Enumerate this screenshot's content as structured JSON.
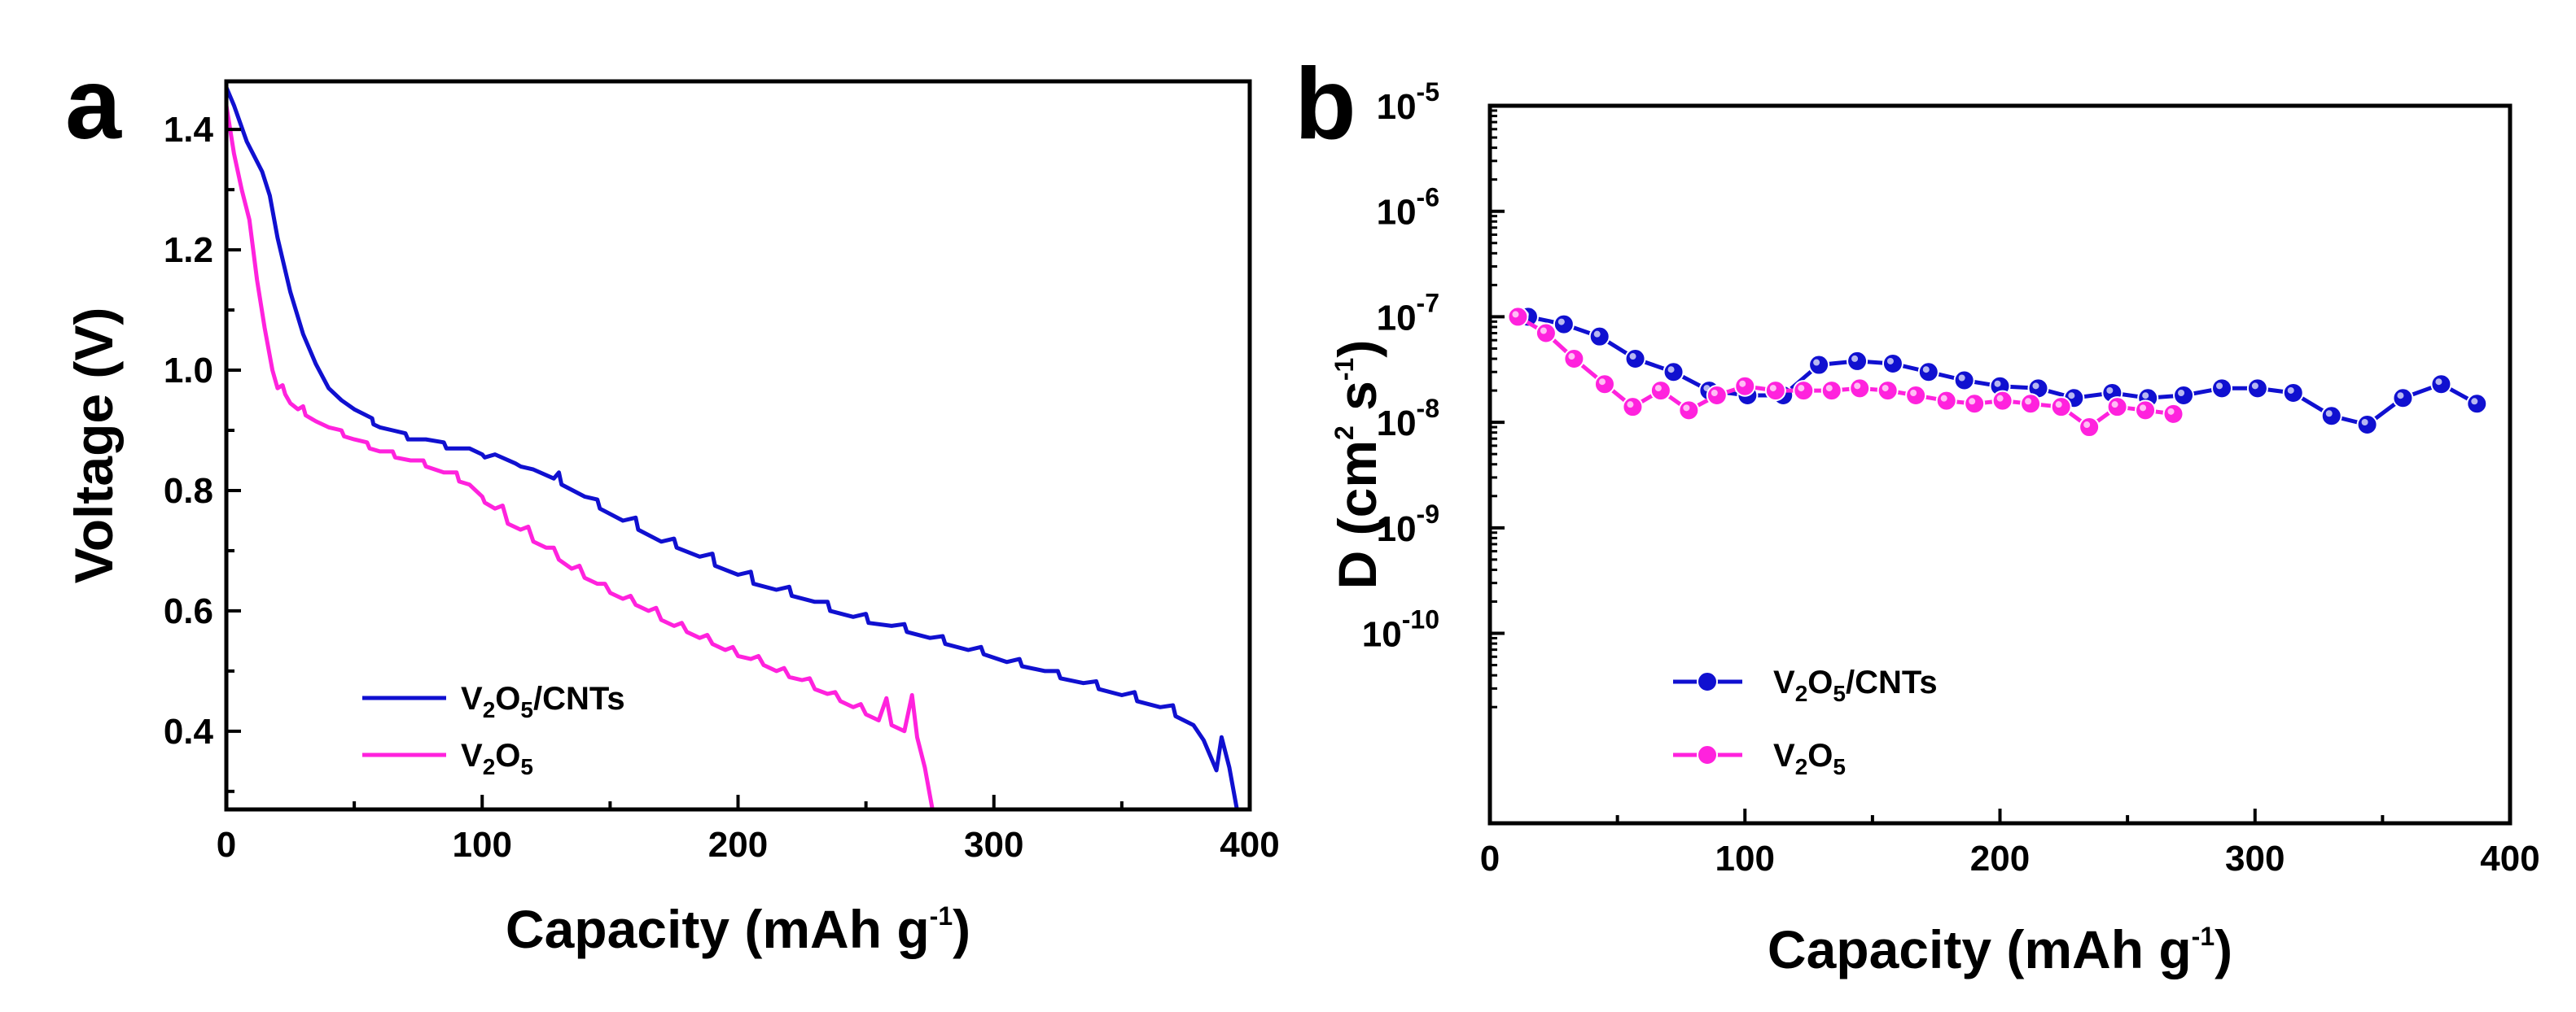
{
  "chart_data": [
    {
      "panel": "a",
      "type": "line",
      "xlabel": "Capacity (mAh g",
      "xlabel_sup": "-1",
      "xlabel_end": ")",
      "ylabel": "Voltage (V)",
      "xlim": [
        0,
        400
      ],
      "ylim": [
        0.27,
        1.48
      ],
      "xticks": [
        0,
        100,
        200,
        300,
        400
      ],
      "yticks": [
        0.4,
        0.6,
        0.8,
        1.0,
        1.2,
        1.4
      ],
      "xtick_labels": [
        "0",
        "100",
        "200",
        "300",
        "400"
      ],
      "ytick_labels": [
        "0.4",
        "0.6",
        "0.8",
        "1.0",
        "1.2",
        "1.4"
      ],
      "legend_position": "bottom-left",
      "series": [
        {
          "name": "V2O5/CNTs",
          "label_parts": [
            "V",
            "2",
            "O",
            "5",
            "/CNTs"
          ],
          "color": "#1010d0",
          "points": [
            [
              0,
              1.47
            ],
            [
              3,
              1.44
            ],
            [
              8,
              1.38
            ],
            [
              14,
              1.33
            ],
            [
              17,
              1.29
            ],
            [
              20,
              1.22
            ],
            [
              25,
              1.13
            ],
            [
              30,
              1.06
            ],
            [
              35,
              1.01
            ],
            [
              40,
              0.97
            ],
            [
              45,
              0.95
            ],
            [
              50,
              0.935
            ],
            [
              57,
              0.92
            ],
            [
              57.5,
              0.91
            ],
            [
              60,
              0.905
            ],
            [
              65,
              0.9
            ],
            [
              70,
              0.895
            ],
            [
              71,
              0.885
            ],
            [
              78,
              0.885
            ],
            [
              85,
              0.88
            ],
            [
              86,
              0.87
            ],
            [
              95,
              0.87
            ],
            [
              100,
              0.86
            ],
            [
              101,
              0.855
            ],
            [
              105,
              0.86
            ],
            [
              113,
              0.845
            ],
            [
              115,
              0.84
            ],
            [
              120,
              0.835
            ],
            [
              128,
              0.82
            ],
            [
              130,
              0.83
            ],
            [
              131,
              0.81
            ],
            [
              140,
              0.79
            ],
            [
              145,
              0.785
            ],
            [
              146,
              0.77
            ],
            [
              155,
              0.75
            ],
            [
              160,
              0.755
            ],
            [
              161,
              0.735
            ],
            [
              170,
              0.715
            ],
            [
              175,
              0.72
            ],
            [
              176,
              0.705
            ],
            [
              185,
              0.69
            ],
            [
              190,
              0.695
            ],
            [
              191,
              0.675
            ],
            [
              200,
              0.66
            ],
            [
              205,
              0.665
            ],
            [
              206,
              0.645
            ],
            [
              215,
              0.635
            ],
            [
              220,
              0.64
            ],
            [
              221,
              0.625
            ],
            [
              230,
              0.615
            ],
            [
              235,
              0.615
            ],
            [
              236,
              0.6
            ],
            [
              245,
              0.59
            ],
            [
              250,
              0.595
            ],
            [
              251,
              0.58
            ],
            [
              260,
              0.575
            ],
            [
              265,
              0.578
            ],
            [
              266,
              0.565
            ],
            [
              275,
              0.555
            ],
            [
              280,
              0.558
            ],
            [
              281,
              0.545
            ],
            [
              290,
              0.535
            ],
            [
              295,
              0.54
            ],
            [
              296,
              0.528
            ],
            [
              305,
              0.515
            ],
            [
              310,
              0.52
            ],
            [
              311,
              0.508
            ],
            [
              320,
              0.5
            ],
            [
              325,
              0.5
            ],
            [
              326,
              0.488
            ],
            [
              335,
              0.48
            ],
            [
              340,
              0.483
            ],
            [
              341,
              0.47
            ],
            [
              350,
              0.46
            ],
            [
              355,
              0.465
            ],
            [
              356,
              0.45
            ],
            [
              365,
              0.44
            ],
            [
              370,
              0.443
            ],
            [
              371,
              0.425
            ],
            [
              378,
              0.41
            ],
            [
              382,
              0.385
            ],
            [
              387,
              0.335
            ],
            [
              389,
              0.39
            ],
            [
              392,
              0.34
            ],
            [
              395,
              0.27
            ]
          ]
        },
        {
          "name": "V2O5",
          "label_parts": [
            "V",
            "2",
            "O",
            "5",
            ""
          ],
          "color": "#ff22dd",
          "points": [
            [
              0,
              1.44
            ],
            [
              3,
              1.36
            ],
            [
              6,
              1.3
            ],
            [
              9,
              1.25
            ],
            [
              12,
              1.15
            ],
            [
              15,
              1.07
            ],
            [
              18,
              1.0
            ],
            [
              20,
              0.97
            ],
            [
              22,
              0.975
            ],
            [
              23,
              0.96
            ],
            [
              25,
              0.945
            ],
            [
              28,
              0.935
            ],
            [
              30,
              0.94
            ],
            [
              31,
              0.925
            ],
            [
              35,
              0.915
            ],
            [
              40,
              0.905
            ],
            [
              45,
              0.9
            ],
            [
              46,
              0.89
            ],
            [
              50,
              0.885
            ],
            [
              55,
              0.88
            ],
            [
              56,
              0.87
            ],
            [
              60,
              0.865
            ],
            [
              65,
              0.865
            ],
            [
              66,
              0.855
            ],
            [
              72,
              0.85
            ],
            [
              77,
              0.85
            ],
            [
              78,
              0.84
            ],
            [
              85,
              0.83
            ],
            [
              90,
              0.83
            ],
            [
              91,
              0.815
            ],
            [
              95,
              0.81
            ],
            [
              100,
              0.79
            ],
            [
              101,
              0.78
            ],
            [
              105,
              0.77
            ],
            [
              108,
              0.775
            ],
            [
              110,
              0.745
            ],
            [
              115,
              0.735
            ],
            [
              118,
              0.74
            ],
            [
              120,
              0.715
            ],
            [
              125,
              0.705
            ],
            [
              128,
              0.705
            ],
            [
              130,
              0.685
            ],
            [
              135,
              0.67
            ],
            [
              138,
              0.675
            ],
            [
              140,
              0.655
            ],
            [
              145,
              0.645
            ],
            [
              148,
              0.645
            ],
            [
              150,
              0.63
            ],
            [
              155,
              0.62
            ],
            [
              158,
              0.625
            ],
            [
              160,
              0.61
            ],
            [
              165,
              0.6
            ],
            [
              168,
              0.605
            ],
            [
              170,
              0.585
            ],
            [
              175,
              0.575
            ],
            [
              178,
              0.58
            ],
            [
              180,
              0.565
            ],
            [
              185,
              0.555
            ],
            [
              188,
              0.56
            ],
            [
              190,
              0.545
            ],
            [
              195,
              0.535
            ],
            [
              198,
              0.54
            ],
            [
              200,
              0.525
            ],
            [
              205,
              0.52
            ],
            [
              208,
              0.525
            ],
            [
              210,
              0.51
            ],
            [
              215,
              0.5
            ],
            [
              218,
              0.505
            ],
            [
              220,
              0.49
            ],
            [
              225,
              0.485
            ],
            [
              228,
              0.488
            ],
            [
              230,
              0.47
            ],
            [
              235,
              0.462
            ],
            [
              238,
              0.465
            ],
            [
              240,
              0.45
            ],
            [
              245,
              0.44
            ],
            [
              248,
              0.445
            ],
            [
              250,
              0.428
            ],
            [
              255,
              0.418
            ],
            [
              258,
              0.455
            ],
            [
              260,
              0.41
            ],
            [
              265,
              0.4
            ],
            [
              268,
              0.46
            ],
            [
              270,
              0.39
            ],
            [
              273,
              0.34
            ],
            [
              276,
              0.27
            ]
          ]
        }
      ]
    },
    {
      "panel": "b",
      "type": "scatter",
      "xlabel": "Capacity (mAh g",
      "xlabel_sup": "-1",
      "xlabel_end": ")",
      "ylabel": "D (cm",
      "ylabel_sup2": "2",
      "ylabel_mid": " s",
      "ylabel_sup1": "-1",
      "ylabel_end": ")",
      "xlim": [
        0,
        400
      ],
      "yscale": "log",
      "ylim_exp": [
        -11.8,
        -5
      ],
      "xticks": [
        0,
        100,
        200,
        300,
        400
      ],
      "xtick_labels": [
        "0",
        "100",
        "200",
        "300",
        "400"
      ],
      "ytick_exps": [
        -10,
        -9,
        -8,
        -7,
        -6,
        -5
      ],
      "ytick_base": "10",
      "ytick_exp_labels": [
        "-10",
        "-9",
        "-8",
        "-7",
        "-6",
        "-5"
      ],
      "legend_position": "bottom-left",
      "series": [
        {
          "name": "V2O5/CNTs",
          "label_parts": [
            "V",
            "2",
            "O",
            "5",
            "/CNTs"
          ],
          "color": "#1010d0",
          "x": [
            15,
            29,
            43,
            57,
            72,
            86,
            101,
            115,
            129,
            144,
            158,
            172,
            186,
            200,
            215,
            229,
            244,
            258,
            272,
            287,
            301,
            315,
            330,
            344,
            358,
            373,
            387
          ],
          "y": [
            1e-07,
            8.5e-08,
            6.5e-08,
            4e-08,
            3e-08,
            2e-08,
            1.8e-08,
            1.8e-08,
            3.5e-08,
            3.8e-08,
            3.6e-08,
            3e-08,
            2.5e-08,
            2.2e-08,
            2.1e-08,
            1.7e-08,
            1.9e-08,
            1.7e-08,
            1.8e-08,
            2.1e-08,
            2.1e-08,
            1.9e-08,
            1.15e-08,
            9.5e-09,
            1.7e-08,
            2.3e-08,
            1.5e-08
          ]
        },
        {
          "name": "V2O5",
          "label_parts": [
            "V",
            "2",
            "O",
            "5",
            ""
          ],
          "color": "#ff22dd",
          "x": [
            11,
            22,
            33,
            45,
            56,
            67,
            78,
            89,
            100,
            112,
            123,
            134,
            145,
            156,
            167,
            179,
            190,
            201,
            212,
            224,
            235,
            246,
            257,
            268
          ],
          "y": [
            1e-07,
            7e-08,
            4e-08,
            2.3e-08,
            1.4e-08,
            2e-08,
            1.3e-08,
            1.8e-08,
            2.2e-08,
            2e-08,
            2e-08,
            2e-08,
            2.1e-08,
            2e-08,
            1.8e-08,
            1.6e-08,
            1.5e-08,
            1.6e-08,
            1.5e-08,
            1.4e-08,
            9e-09,
            1.4e-08,
            1.3e-08,
            1.2e-08
          ]
        }
      ]
    }
  ]
}
